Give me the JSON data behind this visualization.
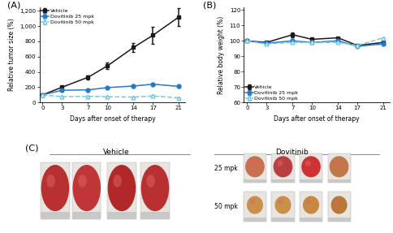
{
  "panel_A": {
    "label": "(A)",
    "x": [
      0,
      3,
      7,
      10,
      14,
      17,
      21
    ],
    "vehicle_y": [
      100,
      200,
      330,
      480,
      720,
      880,
      1120
    ],
    "vehicle_err": [
      8,
      18,
      25,
      38,
      55,
      115,
      120
    ],
    "dov25_y": [
      100,
      160,
      165,
      195,
      215,
      240,
      210
    ],
    "dov25_err": [
      6,
      12,
      12,
      12,
      18,
      18,
      18
    ],
    "dov50_y": [
      100,
      75,
      80,
      75,
      70,
      85,
      60
    ],
    "dov50_err": [
      6,
      8,
      8,
      8,
      8,
      8,
      8
    ],
    "ylabel": "Relative tumor size (%)",
    "xlabel": "Days after onset of therapy",
    "ylim": [
      0,
      1250
    ],
    "yticks": [
      0,
      200,
      400,
      600,
      800,
      1000,
      1200
    ],
    "ytick_labels": [
      "0",
      "200",
      "400",
      "600",
      "800",
      "1,000",
      "1,200"
    ],
    "xticks": [
      0,
      3,
      7,
      10,
      14,
      17,
      21
    ]
  },
  "panel_B": {
    "label": "(B)",
    "x": [
      0,
      3,
      7,
      10,
      14,
      17,
      21
    ],
    "vehicle_y": [
      100,
      99,
      104,
      101,
      102,
      97,
      99
    ],
    "vehicle_err": [
      0.5,
      0.5,
      1.5,
      0.5,
      0.5,
      0.5,
      0.5
    ],
    "dov25_y": [
      100,
      98.5,
      100,
      99,
      100,
      96.5,
      98
    ],
    "dov25_err": [
      0.5,
      0.5,
      0.5,
      0.5,
      0.5,
      0.5,
      0.5
    ],
    "dov50_y": [
      100,
      98,
      99,
      99,
      99,
      97,
      102
    ],
    "dov50_err": [
      0.5,
      0.5,
      0.5,
      0.5,
      0.5,
      0.5,
      0.5
    ],
    "ylabel": "Relative body weight (%)",
    "xlabel": "Days after onset of therapy",
    "ylim": [
      60,
      122
    ],
    "yticks": [
      60,
      70,
      80,
      90,
      100,
      110,
      120
    ],
    "xticks": [
      0,
      3,
      7,
      10,
      14,
      17,
      21
    ]
  },
  "panel_C": {
    "label": "(C)",
    "vehicle_label": "Vehicle",
    "dovitinib_label": "Dovitinib",
    "mpk25_label": "25 mpk",
    "mpk50_label": "50 mpk"
  },
  "legend": {
    "vehicle": "Vehicle",
    "dov25": "Dovitinib 25 mpk",
    "dov50": "Dovitinib 50 mpk"
  },
  "colors": {
    "vehicle": "#1a1a1a",
    "dov25": "#2878c8",
    "dov50": "#78c8dc"
  },
  "background": "#ffffff"
}
